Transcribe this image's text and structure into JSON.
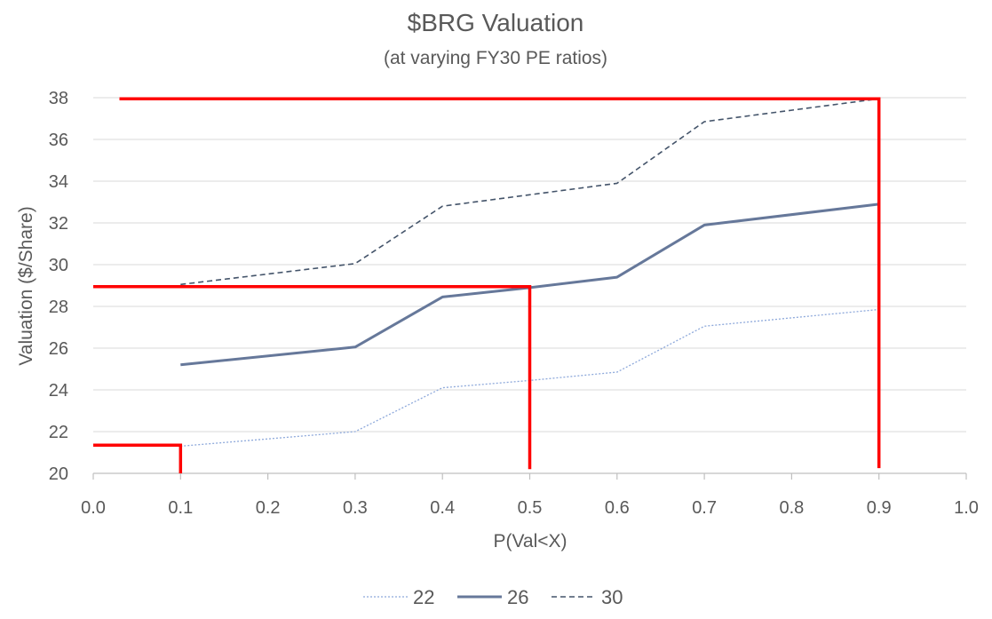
{
  "chart_data": {
    "type": "line",
    "title": "$BRG Valuation",
    "subtitle": "(at varying FY30 PE ratios)",
    "xlabel": "P(Val<X)",
    "ylabel": "Valuation ($/Share)",
    "xlim": [
      0.0,
      1.0
    ],
    "ylim": [
      20,
      38
    ],
    "x_ticks": [
      "0.0",
      "0.1",
      "0.2",
      "0.3",
      "0.4",
      "0.5",
      "0.6",
      "0.7",
      "0.8",
      "0.9",
      "1.0"
    ],
    "y_ticks": [
      "20",
      "22",
      "24",
      "26",
      "28",
      "30",
      "32",
      "34",
      "36",
      "38"
    ],
    "grid": "horizontal",
    "legend_position": "bottom",
    "x": [
      0.1,
      0.3,
      0.4,
      0.5,
      0.6,
      0.7,
      0.9
    ],
    "series": [
      {
        "name": "22",
        "values": [
          21.3,
          22.0,
          24.1,
          24.45,
          24.85,
          27.05,
          27.85
        ],
        "color": "#8EA9DB",
        "style": "dotted"
      },
      {
        "name": "26",
        "values": [
          25.2,
          26.05,
          28.45,
          28.9,
          29.4,
          31.9,
          32.9
        ],
        "color": "#66789A",
        "style": "solid"
      },
      {
        "name": "30",
        "values": [
          29.05,
          30.05,
          32.8,
          33.35,
          33.9,
          36.85,
          37.95
        ],
        "color": "#44546A",
        "style": "dashed"
      }
    ],
    "annotations": [
      {
        "name": "p10",
        "color": "#FF0000",
        "points": [
          [
            0.0,
            21.35
          ],
          [
            0.1,
            21.35
          ],
          [
            0.1,
            20.0
          ]
        ]
      },
      {
        "name": "p50",
        "color": "#FF0000",
        "points": [
          [
            0.0,
            28.95
          ],
          [
            0.5,
            28.95
          ],
          [
            0.5,
            20.2
          ]
        ]
      },
      {
        "name": "p90",
        "color": "#FF0000",
        "points": [
          [
            0.03,
            37.95
          ],
          [
            0.9,
            37.95
          ],
          [
            0.9,
            20.25
          ]
        ]
      }
    ]
  }
}
